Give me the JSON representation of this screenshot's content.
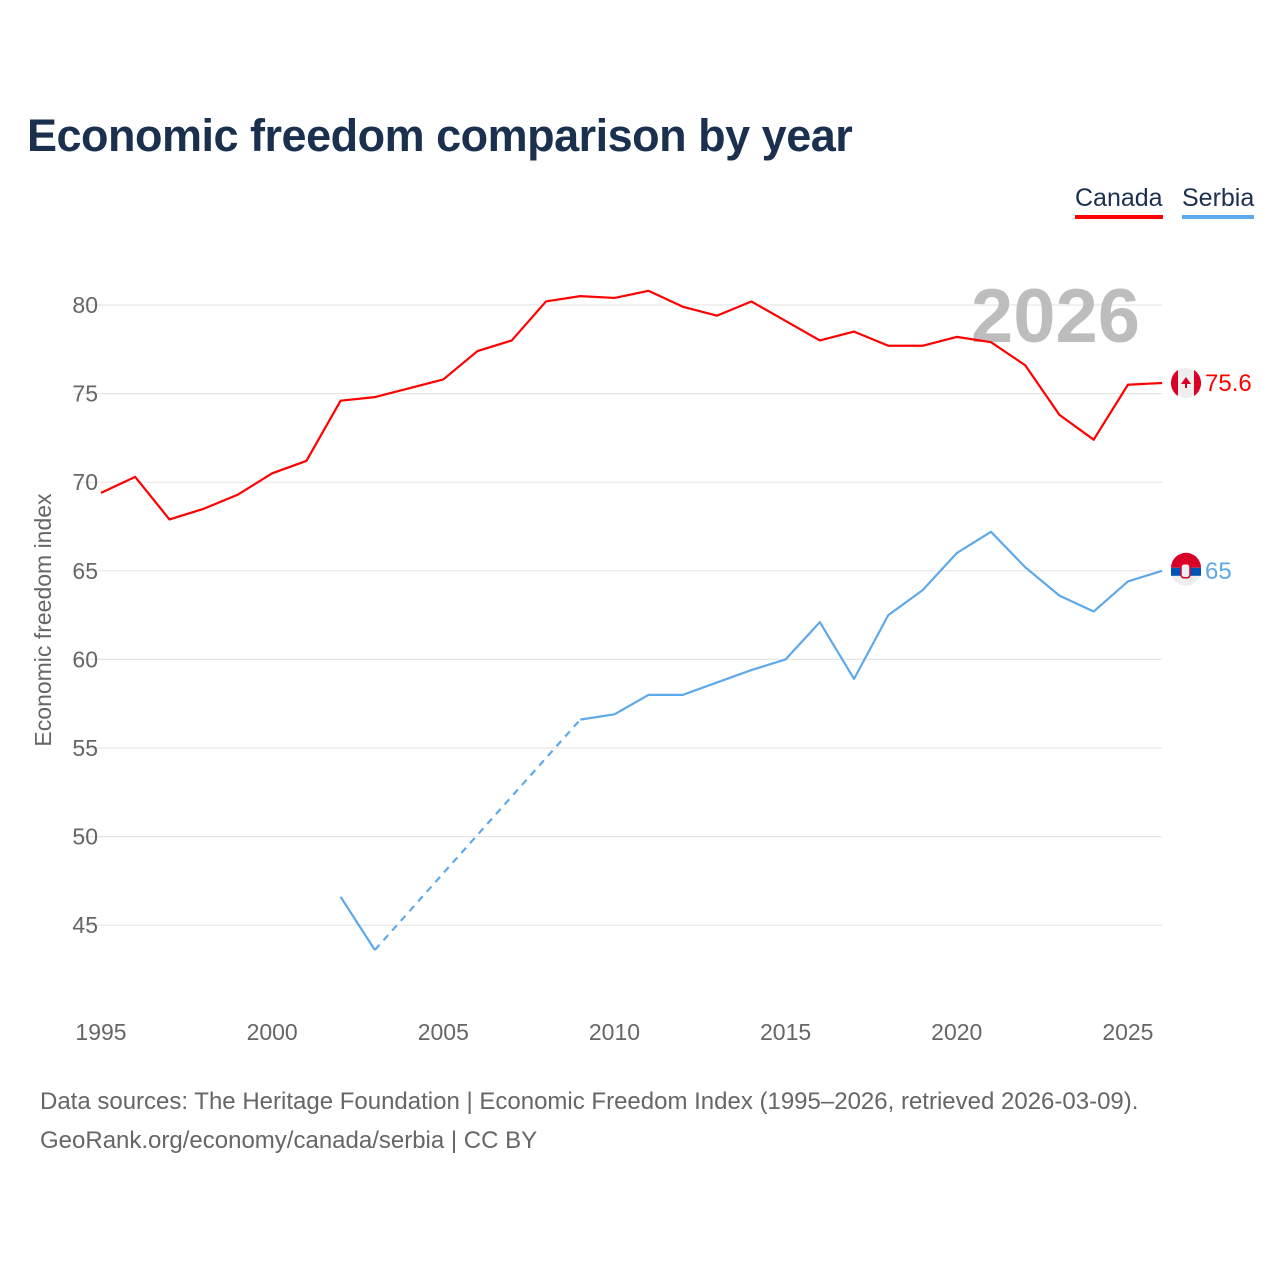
{
  "chart_data": {
    "type": "line",
    "title": "Economic freedom comparison by year",
    "xlabel": "",
    "ylabel": "Economic freedom index",
    "xlim": [
      1995,
      2026
    ],
    "ylim": [
      41,
      83
    ],
    "x_ticks": [
      1995,
      2000,
      2005,
      2010,
      2015,
      2020,
      2025
    ],
    "y_ticks": [
      45,
      50,
      55,
      60,
      65,
      70,
      75,
      80
    ],
    "grid": true,
    "legend_placement": "top-right",
    "current_year_label": "2026",
    "series": [
      {
        "name": "Canada",
        "color": "#ff0000",
        "end_label": "75.6",
        "x": [
          1995,
          1996,
          1997,
          1998,
          1999,
          2000,
          2001,
          2002,
          2003,
          2004,
          2005,
          2006,
          2007,
          2008,
          2009,
          2010,
          2011,
          2012,
          2013,
          2014,
          2015,
          2016,
          2017,
          2018,
          2019,
          2020,
          2021,
          2022,
          2023,
          2024,
          2025,
          2026
        ],
        "values": [
          69.4,
          70.3,
          67.9,
          68.5,
          69.3,
          70.5,
          71.2,
          74.6,
          74.8,
          75.3,
          75.8,
          77.4,
          78.0,
          80.2,
          80.5,
          80.4,
          80.8,
          79.9,
          79.4,
          80.2,
          79.1,
          78.0,
          78.5,
          77.7,
          77.7,
          78.2,
          77.9,
          76.6,
          73.8,
          72.4,
          75.5,
          75.6
        ]
      },
      {
        "name": "Serbia",
        "color": "#5ea9ea",
        "end_label": "65",
        "x": [
          2002,
          2003,
          2009,
          2010,
          2011,
          2012,
          2013,
          2014,
          2015,
          2016,
          2017,
          2018,
          2019,
          2020,
          2021,
          2022,
          2023,
          2024,
          2025,
          2026
        ],
        "values": [
          46.6,
          43.6,
          56.6,
          56.9,
          58.0,
          58.0,
          58.7,
          59.4,
          60.0,
          62.1,
          58.9,
          62.5,
          63.9,
          66.0,
          67.2,
          65.2,
          63.6,
          62.7,
          64.4,
          65.0
        ],
        "gap_after": [
          2003
        ]
      }
    ]
  },
  "footer": {
    "line1": "Data sources: The Heritage Foundation | Economic Freedom Index (1995–2026, retrieved 2026-03-09).",
    "line2": "GeoRank.org/economy/canada/serbia | CC BY"
  }
}
